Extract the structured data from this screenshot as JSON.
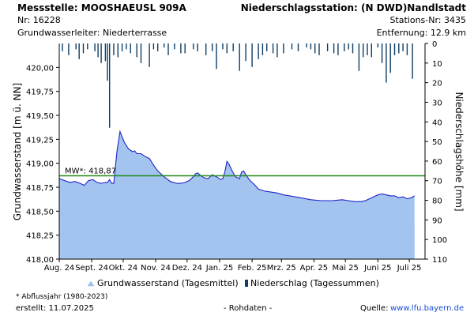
{
  "header": {
    "station_label": "Messstelle: MOOSHAEUSL 909A",
    "nr_label": "Nr: 16228",
    "aquifer_label": "Grundwasserleiter:   Niederterrasse",
    "precip_station_label": "Niederschlagsstation: (N DWD)Nandlstadt",
    "precip_station_nr": "Stations-Nr: 3435",
    "distance": "Entfernung: 12.9 km"
  },
  "footer": {
    "note": "* Abflussjahr (1980-2023)",
    "created": "erstellt:   11.07.2025",
    "raw": "- Rohdaten -",
    "source_label": "Quelle:",
    "source_url": "www.lfu.bayern.de"
  },
  "legend": {
    "groundwater": "Grundwasserstand (Tagesmittel)",
    "precip": "Niederschlag (Tagessummen)"
  },
  "colors": {
    "groundwater_fill": "#a3c4ee",
    "groundwater_line": "#1f22c8",
    "precip_bar": "#0f3d63",
    "mean_line": "#1f8a1f",
    "link": "#1a4bd8"
  },
  "chart_data": {
    "type": "area",
    "ylabel": "Grundwasserstand [m ü. NN]",
    "y2label": "Niederschlagshöhe [mm]",
    "ylim": [
      418.0,
      420.25
    ],
    "y_ticks": [
      "418,00",
      "418,25",
      "418,50",
      "418,75",
      "419,00",
      "419,25",
      "419,50",
      "419,75",
      "420,00"
    ],
    "y_tick_values": [
      418.0,
      418.25,
      418.5,
      418.75,
      419.0,
      419.25,
      419.5,
      419.75,
      420.0
    ],
    "y2lim": [
      0,
      110
    ],
    "y2_ticks": [
      "0",
      "10",
      "20",
      "30",
      "40",
      "50",
      "60",
      "70",
      "80",
      "90",
      "100",
      "110"
    ],
    "y2_tick_values": [
      0,
      10,
      20,
      30,
      40,
      50,
      60,
      70,
      80,
      90,
      100,
      110
    ],
    "x_ticks": [
      "Aug. 24",
      "Sept. 24",
      "Okt. 24",
      "Nov. 24",
      "Dez. 24",
      "Jan. 25",
      "Feb. 25",
      "Mrz. 25",
      "Apr. 25",
      "Mai 25",
      "Juni 25",
      "Juli 25"
    ],
    "x_tick_values": [
      0,
      31,
      61,
      92,
      122,
      153,
      184,
      212,
      243,
      273,
      304,
      334
    ],
    "x_range": [
      0,
      349
    ],
    "grid": false,
    "mean_line": {
      "label": "MW*: 418,87",
      "value": 418.87
    },
    "series": [
      {
        "name": "Grundwasserstand (Tagesmittel)",
        "x": [
          0,
          5,
          10,
          15,
          20,
          24,
          28,
          32,
          36,
          40,
          44,
          46,
          48,
          50,
          52,
          55,
          58,
          62,
          66,
          70,
          72,
          74,
          78,
          82,
          86,
          90,
          94,
          100,
          106,
          112,
          116,
          120,
          124,
          128,
          130,
          132,
          134,
          138,
          142,
          146,
          150,
          154,
          156,
          158,
          160,
          162,
          164,
          168,
          172,
          174,
          176,
          178,
          182,
          186,
          190,
          196,
          202,
          208,
          214,
          220,
          230,
          240,
          250,
          260,
          270,
          276,
          282,
          288,
          292,
          296,
          300,
          304,
          308,
          312,
          316,
          320,
          324,
          328,
          332,
          336,
          339
        ],
        "values": [
          418.84,
          418.82,
          418.8,
          418.81,
          418.79,
          418.77,
          418.82,
          418.83,
          418.8,
          418.79,
          418.8,
          418.8,
          418.83,
          418.79,
          418.79,
          419.12,
          419.33,
          419.22,
          419.15,
          419.12,
          419.13,
          419.1,
          419.1,
          419.07,
          419.05,
          418.98,
          418.92,
          418.86,
          418.81,
          418.79,
          418.79,
          418.8,
          418.82,
          418.86,
          418.89,
          418.9,
          418.88,
          418.85,
          418.84,
          418.88,
          418.86,
          418.83,
          418.84,
          418.91,
          419.02,
          418.99,
          418.94,
          418.86,
          418.84,
          418.91,
          418.92,
          418.88,
          418.82,
          418.78,
          418.73,
          418.71,
          418.7,
          418.69,
          418.67,
          418.66,
          418.64,
          418.62,
          418.61,
          418.61,
          418.62,
          418.61,
          418.6,
          418.6,
          418.61,
          418.63,
          418.65,
          418.67,
          418.68,
          418.67,
          418.66,
          418.66,
          418.64,
          418.65,
          418.63,
          418.64,
          418.66
        ]
      },
      {
        "name": "Niederschlag (Tagessummen)",
        "x": [
          3,
          9,
          16,
          19,
          23,
          27,
          34,
          37,
          40,
          44,
          46,
          48,
          52,
          56,
          60,
          64,
          68,
          74,
          78,
          86,
          90,
          94,
          100,
          104,
          110,
          116,
          120,
          128,
          132,
          140,
          146,
          150,
          156,
          160,
          166,
          172,
          178,
          184,
          190,
          194,
          198,
          204,
          208,
          214,
          222,
          228,
          236,
          240,
          244,
          248,
          256,
          262,
          266,
          272,
          276,
          280,
          286,
          290,
          294,
          298,
          304,
          308,
          312,
          316,
          320,
          324,
          328,
          332,
          337
        ],
        "values": [
          4,
          6,
          3,
          8,
          5,
          3,
          4,
          7,
          10,
          9,
          19,
          43,
          6,
          7,
          4,
          3,
          5,
          7,
          10,
          12,
          3,
          4,
          2,
          6,
          3,
          5,
          5,
          3,
          4,
          6,
          4,
          13,
          3,
          5,
          4,
          14,
          9,
          12,
          8,
          6,
          4,
          5,
          7,
          5,
          3,
          4,
          2,
          3,
          5,
          6,
          4,
          5,
          6,
          4,
          3,
          5,
          14,
          7,
          6,
          7,
          2,
          10,
          20,
          15,
          6,
          5,
          4,
          6,
          18
        ]
      }
    ]
  }
}
